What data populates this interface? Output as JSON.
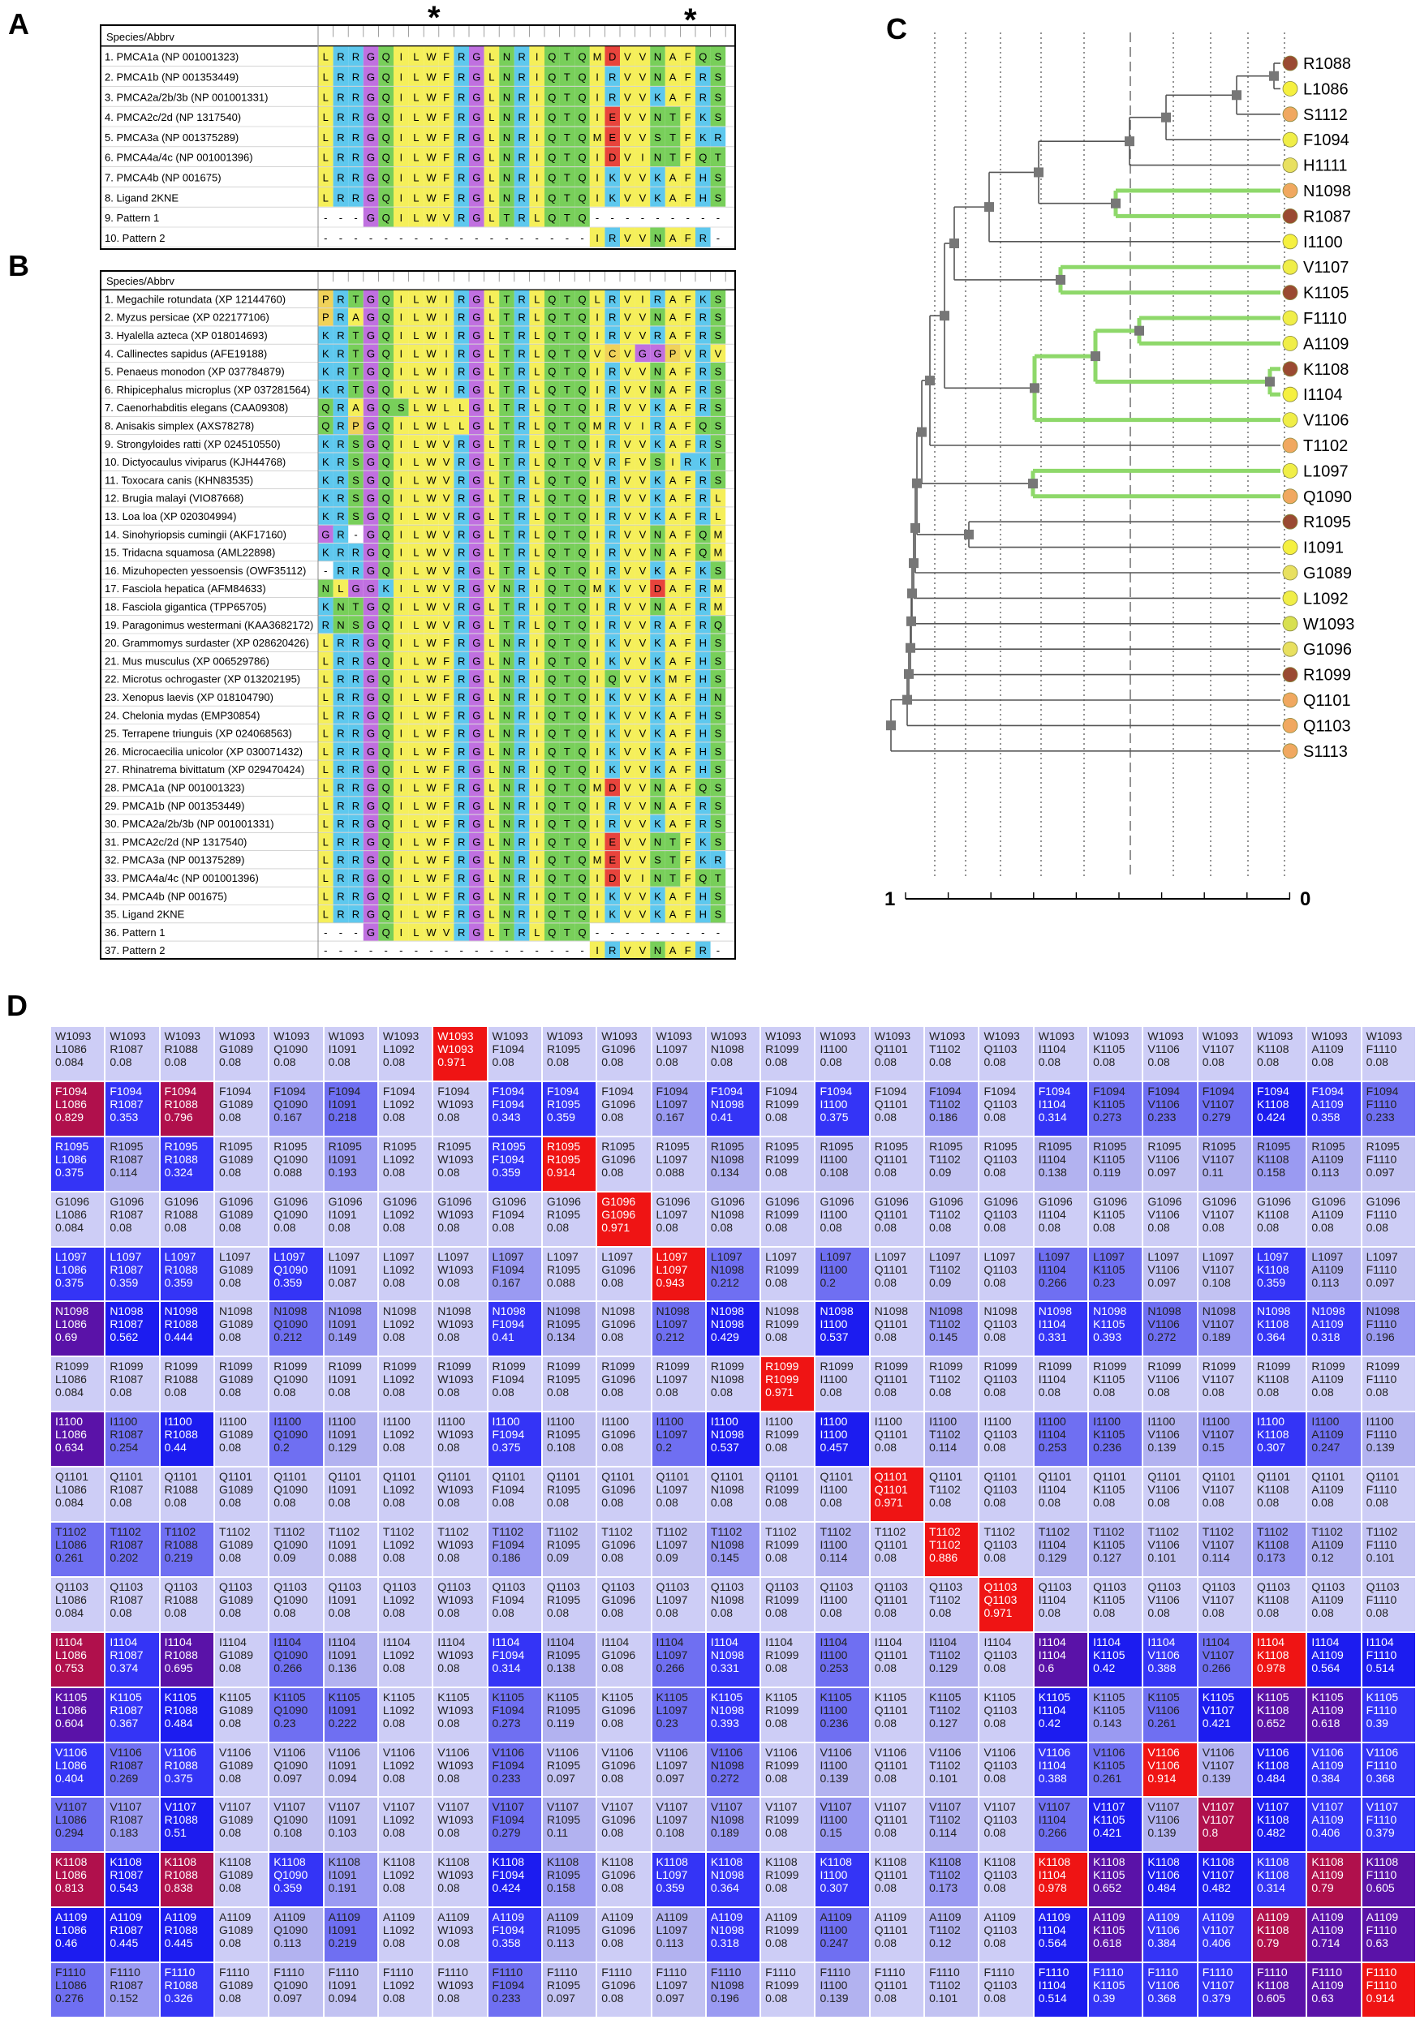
{
  "labels": {
    "A": "A",
    "B": "B",
    "C": "C",
    "D": "D"
  },
  "alignmentA": {
    "header": "Species/Abbrv",
    "stars": [
      "*",
      "*"
    ],
    "rows": [
      {
        "name": "1. PMCA1a (NP 001001323)",
        "seq": "LRRGQILWFRGLNRIQTQMDVVNAFQS"
      },
      {
        "name": "2. PMCA1b (NP 001353449)",
        "seq": "LRRGQILWFRGLNRIQTQIRVVNAFRS"
      },
      {
        "name": "3. PMCA2a/2b/3b (NP 001001331)",
        "seq": "LRRGQILWFRGLNRIQTQIRVVKAFRS"
      },
      {
        "name": "4. PMCA2c/2d (NP 1317540)",
        "seq": "LRRGQILWFRGLNRIQTQIEVVNTFKS"
      },
      {
        "name": "5. PMCA3a (NP 001375289)",
        "seq": "LRRGQILWFRGLNRIQTQMEVVSTFKR"
      },
      {
        "name": "6. PMCA4a/4c (NP 001001396)",
        "seq": "LRRGQILWFRGLNRIQTQIDVINTFQT"
      },
      {
        "name": "7. PMCA4b (NP 001675)",
        "seq": "LRRGQILWFRGLNRIQTQIKVVKAFHS"
      },
      {
        "name": "8. Ligand 2KNE",
        "seq": "LRRGQILWFRGLNRIQTQIKVVKAFHS"
      },
      {
        "name": "9. Pattern 1",
        "seq": "---GQILWVRGLTRLQTQ---------"
      },
      {
        "name": "10. Pattern 2",
        "seq": "------------------IRVVNAFR-"
      }
    ]
  },
  "alignmentB": {
    "header": "Species/Abbrv",
    "rows": [
      {
        "name": "1. Megachile rotundata (XP 12144760)",
        "seq": "PRTGQILWIRGLTRLQTQLRVIRAFKS"
      },
      {
        "name": "2. Myzus persicae (XP 022177106)",
        "seq": "PRAGQILWIRGLTRLQTQIRVVNAFRS"
      },
      {
        "name": "3. Hyalella azteca (XP 018014693)",
        "seq": "KRTGQILWIRGLTRLQTQIRVVRAFRS"
      },
      {
        "name": "4. Callinectes sapidus (AFE19188)",
        "seq": "KRTGQILWIRGLTRLQTQVCVGGPVRV"
      },
      {
        "name": "5. Penaeus monodon (XP 037784879)",
        "seq": "KRTGQILWIRGLTRLQTQIRVVNAFRS"
      },
      {
        "name": "6. Rhipicephalus microplus (XP 037281564)",
        "seq": "KRTGQILWIRGLTRLQTQIRVVNAFRS"
      },
      {
        "name": "7. Caenorhabditis elegans (CAA09308)",
        "seq": "QRAGQSLWLLGLTRLQTQIRVVKAFRS"
      },
      {
        "name": "8. Anisakis simplex (AXS78278)",
        "seq": "QRPGQILWLLGLTRLQTQMRVIRAFQS"
      },
      {
        "name": "9. Strongyloides ratti (XP 024510550)",
        "seq": "KRSGQILWVRGLTRLQTQIRVVKAFRS"
      },
      {
        "name": "10. Dictyocaulus viviparus (KJH44768)",
        "seq": "KRSGQILWVRGLTRLQTQVRFVSIRKT"
      },
      {
        "name": "11. Toxocara canis (KHN83535)",
        "seq": "KRSGQILWVRGLTRLQTQIRVVKAFRS"
      },
      {
        "name": "12. Brugia malayi (VIO87668)",
        "seq": "KRSGQILWVRGLTRLQTQIRVVKAFRL"
      },
      {
        "name": "13. Loa loa (XP 020304994)",
        "seq": "KRSGQILWVRGLTRLQTQIRVVKAFRL"
      },
      {
        "name": "14. Sinohyriopsis cumingii (AKF17160)",
        "seq": "GR-GQILWVRGLTRLQTQIRVVNAFQM"
      },
      {
        "name": "15. Tridacna squamosa (AML22898)",
        "seq": "KRRGQILWVRGLTRLQTQIRVVNAFQM"
      },
      {
        "name": "16. Mizuhopecten yessoensis (OWF35112)",
        "seq": "-RRGQILWVRGLTRLQTQIRVVKAFKS"
      },
      {
        "name": "17. Fasciola hepatica (AFM84633)",
        "seq": "NLGGKILWVRGVNRIQTQMKVVDAFRM"
      },
      {
        "name": "18. Fasciola gigantica (TPP65705)",
        "seq": "KNTGQILWVRGLTRIQTQIRVVNAFRM"
      },
      {
        "name": "19. Paragonimus westermani (KAA3682172)",
        "seq": "RNSGQILWVRGLTRLQTQIRVVRAFRQ"
      },
      {
        "name": "20. Grammomys surdaster (XP 028620426)",
        "seq": "LRRGQILWFRGLNRIQTQIKVVKAFHS"
      },
      {
        "name": "21. Mus musculus (XP 006529786)",
        "seq": "LRRGQILWFRGLNRIQTQIKVVKAFHS"
      },
      {
        "name": "22. Microtus ochrogaster (XP 013202195)",
        "seq": "LRRGQILWFRGLNRIQTQIQVVKMFHS"
      },
      {
        "name": "23. Xenopus laevis (XP 018104790)",
        "seq": "LRRGQILWFRGLNRIQTQIKVVKAFHN"
      },
      {
        "name": "24. Chelonia mydas (EMP30854)",
        "seq": "LRRGQILWFRGLNRIQTQIKVVKAFHS"
      },
      {
        "name": "25. Terrapene triunguis (XP 024068563)",
        "seq": "LRRGQILWFRGLNRIQTQIKVVKAFHS"
      },
      {
        "name": "26. Microcaecilia unicolor (XP 030071432)",
        "seq": "LRRGQILWFRGLNRIQTQIKVVKAFHS"
      },
      {
        "name": "27. Rhinatrema bivittatum (XP 029470424)",
        "seq": "LRRGQILWFRGLNRIQTQIKVVKAFHS"
      },
      {
        "name": "28. PMCA1a (NP 001001323)",
        "seq": "LRRGQILWFRGLNRIQTQMDVVNAFQS"
      },
      {
        "name": "29. PMCA1b (NP 001353449)",
        "seq": "LRRGQILWFRGLNRIQTQIRVVNAFRS"
      },
      {
        "name": "30. PMCA2a/2b/3b (NP 001001331)",
        "seq": "LRRGQILWFRGLNRIQTQIRVVKAFRS"
      },
      {
        "name": "31. PMCA2c/2d (NP 1317540)",
        "seq": "LRRGQILWFRGLNRIQTQIEVVNTFKS"
      },
      {
        "name": "32. PMCA3a (NP 001375289)",
        "seq": "LRRGQILWFRGLNRIQTQMEVVSTFKR"
      },
      {
        "name": "33. PMCA4a/4c (NP 001001396)",
        "seq": "LRRGQILWFRGLNRIQTQIDVINTFQT"
      },
      {
        "name": "34. PMCA4b (NP 001675)",
        "seq": "LRRGQILWFRGLNRIQTQIKVVKAFHS"
      },
      {
        "name": "35. Ligand 2KNE",
        "seq": "LRRGQILWFRGLNRIQTQIKVVKAFHS"
      },
      {
        "name": "36. Pattern 1",
        "seq": "---GQILWVRGLTRLQTQ---------"
      },
      {
        "name": "37. Pattern 2",
        "seq": "------------------IRVVNAFR-"
      }
    ]
  },
  "aaColors": {
    "L": "#f5ef5a",
    "I": "#f5ef5a",
    "V": "#f5ef5a",
    "M": "#f5ef5a",
    "F": "#f5ef5a",
    "W": "#f5ef5a",
    "A": "#f5ef5a",
    "R": "#5ec8ee",
    "K": "#5ec8ee",
    "H": "#5ec8ee",
    "G": "#c070e0",
    "P": "#f0d25a",
    "C": "#f0d25a",
    "Q": "#78cf5a",
    "N": "#78cf5a",
    "S": "#78cf5a",
    "T": "#78cf5a",
    "Y": "#78cf5a",
    "D": "#e8443c",
    "E": "#e8443c"
  },
  "tree": {
    "leaves": [
      {
        "label": "R1088",
        "color": "#9a4a32"
      },
      {
        "label": "L1086",
        "color": "#f5f040"
      },
      {
        "label": "S1112",
        "color": "#f0a860"
      },
      {
        "label": "F1094",
        "color": "#f0ee48"
      },
      {
        "label": "H1111",
        "color": "#e8e060"
      },
      {
        "label": "N1098",
        "color": "#f0a860"
      },
      {
        "label": "R1087",
        "color": "#9a4a32"
      },
      {
        "label": "I1100",
        "color": "#f5f040"
      },
      {
        "label": "V1107",
        "color": "#f0ee48"
      },
      {
        "label": "K1105",
        "color": "#9a4a32"
      },
      {
        "label": "F1110",
        "color": "#f0ee48"
      },
      {
        "label": "A1109",
        "color": "#f0ee48"
      },
      {
        "label": "K1108",
        "color": "#9a4a32"
      },
      {
        "label": "I1104",
        "color": "#f5f040"
      },
      {
        "label": "V1106",
        "color": "#f0ee48"
      },
      {
        "label": "T1102",
        "color": "#f0a860"
      },
      {
        "label": "L1097",
        "color": "#f0ee48"
      },
      {
        "label": "Q1090",
        "color": "#f0a860"
      },
      {
        "label": "R1095",
        "color": "#9a4a32"
      },
      {
        "label": "I1091",
        "color": "#f5f040"
      },
      {
        "label": "G1089",
        "color": "#e8e060"
      },
      {
        "label": "L1092",
        "color": "#f0ee48"
      },
      {
        "label": "W1093",
        "color": "#d8e050"
      },
      {
        "label": "G1096",
        "color": "#e8e060"
      },
      {
        "label": "R1099",
        "color": "#9a4a32"
      },
      {
        "label": "Q1101",
        "color": "#f0a860"
      },
      {
        "label": "Q1103",
        "color": "#f0a860"
      },
      {
        "label": "S1113",
        "color": "#f0a860"
      }
    ],
    "scale_left": "1",
    "scale_right": "0"
  },
  "heatmap": {
    "cols": [
      "L1086",
      "R1087",
      "R1088",
      "G1089",
      "Q1090",
      "I1091",
      "L1092",
      "W1093",
      "F1094",
      "R1095",
      "G1096",
      "L1097",
      "N1098",
      "R1099",
      "I1100",
      "Q1101",
      "T1102",
      "Q1103",
      "I1104",
      "K1105",
      "V1106",
      "V1107",
      "K1108",
      "A1109",
      "F1110"
    ],
    "rows": [
      {
        "name": "W1093",
        "values": [
          0.084,
          0.08,
          0.08,
          0.08,
          0.08,
          0.08,
          0.08,
          0.971,
          0.08,
          0.08,
          0.08,
          0.08,
          0.08,
          0.08,
          0.08,
          0.08,
          0.08,
          0.08,
          0.08,
          0.08,
          0.08,
          0.08,
          0.08,
          0.08,
          0.08
        ]
      },
      {
        "name": "F1094",
        "values": [
          0.829,
          0.353,
          0.796,
          0.08,
          0.167,
          0.218,
          0.08,
          0.08,
          0.343,
          0.359,
          0.08,
          0.167,
          0.41,
          0.08,
          0.375,
          0.08,
          0.186,
          0.08,
          0.314,
          0.273,
          0.233,
          0.279,
          0.424,
          0.358,
          0.233
        ]
      },
      {
        "name": "R1095",
        "values": [
          0.375,
          0.114,
          0.324,
          0.08,
          0.088,
          0.193,
          0.08,
          0.08,
          0.359,
          0.914,
          0.08,
          0.088,
          0.134,
          0.08,
          0.108,
          0.08,
          0.09,
          0.08,
          0.138,
          0.119,
          0.097,
          0.11,
          0.158,
          0.113,
          0.097
        ]
      },
      {
        "name": "G1096",
        "values": [
          0.084,
          0.08,
          0.08,
          0.08,
          0.08,
          0.08,
          0.08,
          0.08,
          0.08,
          0.08,
          0.971,
          0.08,
          0.08,
          0.08,
          0.08,
          0.08,
          0.08,
          0.08,
          0.08,
          0.08,
          0.08,
          0.08,
          0.08,
          0.08,
          0.08
        ]
      },
      {
        "name": "L1097",
        "values": [
          0.375,
          0.359,
          0.359,
          0.08,
          0.359,
          0.087,
          0.08,
          0.08,
          0.167,
          0.088,
          0.08,
          0.943,
          0.212,
          0.08,
          0.2,
          0.08,
          0.09,
          0.08,
          0.266,
          0.23,
          0.097,
          0.108,
          0.359,
          0.113,
          0.097
        ]
      },
      {
        "name": "N1098",
        "values": [
          0.69,
          0.562,
          0.444,
          0.08,
          0.212,
          0.149,
          0.08,
          0.08,
          0.41,
          0.134,
          0.08,
          0.212,
          0.429,
          0.08,
          0.537,
          0.08,
          0.145,
          0.08,
          0.331,
          0.393,
          0.272,
          0.189,
          0.364,
          0.318,
          0.196
        ]
      },
      {
        "name": "R1099",
        "values": [
          0.084,
          0.08,
          0.08,
          0.08,
          0.08,
          0.08,
          0.08,
          0.08,
          0.08,
          0.08,
          0.08,
          0.08,
          0.08,
          0.971,
          0.08,
          0.08,
          0.08,
          0.08,
          0.08,
          0.08,
          0.08,
          0.08,
          0.08,
          0.08,
          0.08
        ]
      },
      {
        "name": "I1100",
        "values": [
          0.634,
          0.254,
          0.44,
          0.08,
          0.2,
          0.129,
          0.08,
          0.08,
          0.375,
          0.108,
          0.08,
          0.2,
          0.537,
          0.08,
          0.457,
          0.08,
          0.114,
          0.08,
          0.253,
          0.236,
          0.139,
          0.15,
          0.307,
          0.247,
          0.139
        ]
      },
      {
        "name": "Q1101",
        "values": [
          0.084,
          0.08,
          0.08,
          0.08,
          0.08,
          0.08,
          0.08,
          0.08,
          0.08,
          0.08,
          0.08,
          0.08,
          0.08,
          0.08,
          0.08,
          0.971,
          0.08,
          0.08,
          0.08,
          0.08,
          0.08,
          0.08,
          0.08,
          0.08,
          0.08
        ]
      },
      {
        "name": "T1102",
        "values": [
          0.261,
          0.202,
          0.219,
          0.08,
          0.09,
          0.088,
          0.08,
          0.08,
          0.186,
          0.09,
          0.08,
          0.09,
          0.145,
          0.08,
          0.114,
          0.08,
          0.886,
          0.08,
          0.129,
          0.127,
          0.101,
          0.114,
          0.173,
          0.12,
          0.101
        ]
      },
      {
        "name": "Q1103",
        "values": [
          0.084,
          0.08,
          0.08,
          0.08,
          0.08,
          0.08,
          0.08,
          0.08,
          0.08,
          0.08,
          0.08,
          0.08,
          0.08,
          0.08,
          0.08,
          0.08,
          0.08,
          0.971,
          0.08,
          0.08,
          0.08,
          0.08,
          0.08,
          0.08,
          0.08
        ]
      },
      {
        "name": "I1104",
        "values": [
          0.753,
          0.374,
          0.695,
          0.08,
          0.266,
          0.136,
          0.08,
          0.08,
          0.314,
          0.138,
          0.08,
          0.266,
          0.331,
          0.08,
          0.253,
          0.08,
          0.129,
          0.08,
          0.6,
          0.42,
          0.388,
          0.266,
          0.978,
          0.564,
          0.514
        ]
      },
      {
        "name": "K1105",
        "values": [
          0.604,
          0.367,
          0.484,
          0.08,
          0.23,
          0.222,
          0.08,
          0.08,
          0.273,
          0.119,
          0.08,
          0.23,
          0.393,
          0.08,
          0.236,
          0.08,
          0.127,
          0.08,
          0.42,
          0.143,
          0.261,
          0.421,
          0.652,
          0.618,
          0.39
        ]
      },
      {
        "name": "V1106",
        "values": [
          0.404,
          0.269,
          0.375,
          0.08,
          0.097,
          0.094,
          0.08,
          0.08,
          0.233,
          0.097,
          0.08,
          0.097,
          0.272,
          0.08,
          0.139,
          0.08,
          0.101,
          0.08,
          0.388,
          0.261,
          0.914,
          0.139,
          0.484,
          0.384,
          0.368
        ]
      },
      {
        "name": "V1107",
        "values": [
          0.294,
          0.183,
          0.51,
          0.08,
          0.108,
          0.103,
          0.08,
          0.08,
          0.279,
          0.11,
          0.08,
          0.108,
          0.189,
          0.08,
          0.15,
          0.08,
          0.114,
          0.08,
          0.266,
          0.421,
          0.139,
          0.8,
          0.482,
          0.406,
          0.379
        ]
      },
      {
        "name": "K1108",
        "values": [
          0.813,
          0.543,
          0.838,
          0.08,
          0.359,
          0.191,
          0.08,
          0.08,
          0.424,
          0.158,
          0.08,
          0.359,
          0.364,
          0.08,
          0.307,
          0.08,
          0.173,
          0.08,
          0.978,
          0.652,
          0.484,
          0.482,
          0.314,
          0.79,
          0.605
        ]
      },
      {
        "name": "A1109",
        "values": [
          0.46,
          0.445,
          0.445,
          0.08,
          0.113,
          0.219,
          0.08,
          0.08,
          0.358,
          0.113,
          0.08,
          0.113,
          0.318,
          0.08,
          0.247,
          0.08,
          0.12,
          0.08,
          0.564,
          0.618,
          0.384,
          0.406,
          0.79,
          0.714,
          0.63
        ]
      },
      {
        "name": "F1110",
        "values": [
          0.276,
          0.152,
          0.326,
          0.08,
          0.097,
          0.094,
          0.08,
          0.08,
          0.233,
          0.097,
          0.08,
          0.097,
          0.196,
          0.08,
          0.139,
          0.08,
          0.101,
          0.08,
          0.514,
          0.39,
          0.368,
          0.379,
          0.605,
          0.63,
          0.914
        ]
      }
    ]
  }
}
